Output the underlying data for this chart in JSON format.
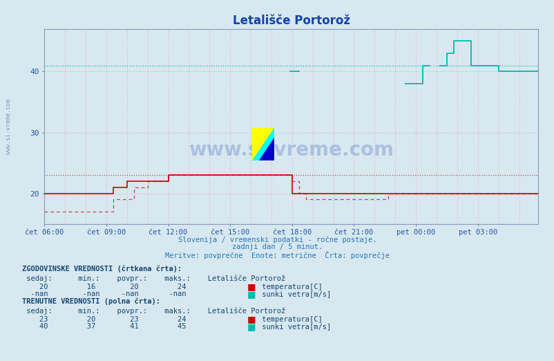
{
  "title": "Letališče Portorož",
  "title_color": "#1144aa",
  "bg_color": "#d8e8f0",
  "plot_bg_color": "#d8e8f0",
  "ylabel_color": "#2255aa",
  "xlabel_color": "#2255aa",
  "grid_color_v": "#dd7777",
  "grid_color_h": "#cc9999",
  "ylim": [
    15,
    47
  ],
  "yticks": [
    20,
    30,
    40
  ],
  "xtick_labels": [
    "čet 06:00",
    "čet 09:00",
    "čet 12:00",
    "čet 15:00",
    "čet 18:00",
    "čet 21:00",
    "pet 00:00",
    "pet 03:00"
  ],
  "n_points": 288,
  "temp_color_solid": "#cc0000",
  "temp_color_dashed": "#cc4444",
  "wind_color": "#00bbaa",
  "ref_line_temp_avg": 23.0,
  "ref_line_wind_avg": 41.0,
  "bottom_text_color": "#2277bb",
  "legend_text_color": "#114477",
  "watermark": "www.si-vreme.com",
  "side_watermark": "www.si-vreme.com"
}
